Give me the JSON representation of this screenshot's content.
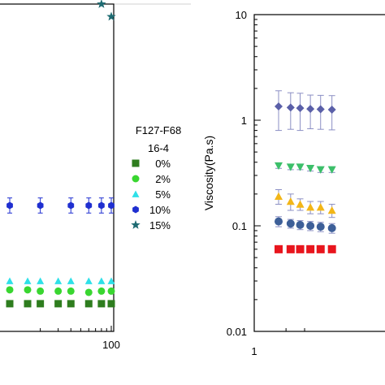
{
  "chart_data": [
    {
      "type": "scatter",
      "x_scale": "log",
      "x_tick_labels": [
        "100"
      ],
      "legend": {
        "title_lines": [
          "F127-F68",
          "16-4"
        ],
        "placement": "right",
        "entries": [
          {
            "label": "0%",
            "color": "#2e7d1e",
            "marker": "square"
          },
          {
            "label": "2%",
            "color": "#39d630",
            "marker": "circle"
          },
          {
            "label": "5%",
            "color": "#2ee0e8",
            "marker": "triangle"
          },
          {
            "label": "10%",
            "color": "#1f2fd0",
            "marker": "hexagon"
          },
          {
            "label": "15%",
            "color": "#1e6b72",
            "marker": "star"
          }
        ]
      },
      "series": [
        {
          "name": "0%",
          "x": [
            10,
            15,
            20,
            30,
            40,
            60,
            80,
            100
          ],
          "y": [
            0.62,
            0.62,
            0.62,
            0.62,
            0.62,
            0.62,
            0.62,
            0.62
          ]
        },
        {
          "name": "2%",
          "x": [
            10,
            15,
            20,
            30,
            40,
            60,
            80,
            100
          ],
          "y": [
            0.73,
            0.73,
            0.72,
            0.72,
            0.72,
            0.71,
            0.72,
            0.72
          ]
        },
        {
          "name": "5%",
          "x": [
            10,
            15,
            20,
            30,
            40,
            60,
            80,
            100
          ],
          "y": [
            0.8,
            0.8,
            0.8,
            0.8,
            0.8,
            0.8,
            0.8,
            0.8
          ]
        },
        {
          "name": "10%",
          "x": [
            10,
            20,
            40,
            60,
            80,
            100
          ],
          "y": [
            1.4,
            1.4,
            1.4,
            1.4,
            1.4,
            1.4
          ],
          "error": [
            0.06,
            0.06,
            0.06,
            0.06,
            0.06,
            0.06
          ]
        },
        {
          "name": "15%",
          "x": [
            10,
            15,
            20,
            30,
            40,
            60,
            80,
            100
          ],
          "y": [
            3.6,
            3.5,
            3.4,
            3.3,
            3.2,
            3.1,
            3.0,
            2.9
          ]
        }
      ]
    },
    {
      "type": "scatter",
      "x_scale": "log",
      "y_scale": "log",
      "ylabel": "Viscosity(Pa.s)",
      "ylim": [
        0.01,
        10
      ],
      "y_tick_labels": [
        "10",
        "1",
        "0.1",
        "0.01"
      ],
      "x_tick_labels": [
        "1"
      ],
      "series": [
        {
          "color": "#5a5fa8",
          "marker": "diamond",
          "x": [
            1,
            1.3,
            1.6,
            2,
            2.5,
            3.2
          ],
          "y": [
            1.35,
            1.32,
            1.3,
            1.28,
            1.27,
            1.26
          ],
          "error": [
            0.55,
            0.5,
            0.5,
            0.45,
            0.45,
            0.45
          ]
        },
        {
          "color": "#3cbf6a",
          "marker": "triangle-down",
          "x": [
            1,
            1.3,
            1.6,
            2,
            2.5,
            3.2
          ],
          "y": [
            0.37,
            0.36,
            0.36,
            0.35,
            0.34,
            0.34
          ],
          "error": [
            0.02,
            0.02,
            0.02,
            0.02,
            0.02,
            0.02
          ]
        },
        {
          "color": "#f2b618",
          "marker": "triangle",
          "x": [
            1,
            1.3,
            1.6,
            2,
            2.5,
            3.2
          ],
          "y": [
            0.19,
            0.17,
            0.16,
            0.15,
            0.15,
            0.14
          ],
          "error": [
            0.03,
            0.03,
            0.02,
            0.02,
            0.02,
            0.02
          ]
        },
        {
          "color": "#3d5f98",
          "marker": "circle",
          "x": [
            1,
            1.3,
            1.6,
            2,
            2.5,
            3.2
          ],
          "y": [
            0.11,
            0.105,
            0.102,
            0.1,
            0.098,
            0.095
          ],
          "error": [
            0.012,
            0.01,
            0.01,
            0.01,
            0.01,
            0.01
          ]
        },
        {
          "color": "#e8151d",
          "marker": "square",
          "x": [
            1,
            1.3,
            1.6,
            2,
            2.5,
            3.2
          ],
          "y": [
            0.06,
            0.06,
            0.06,
            0.06,
            0.06,
            0.06
          ]
        }
      ]
    }
  ]
}
